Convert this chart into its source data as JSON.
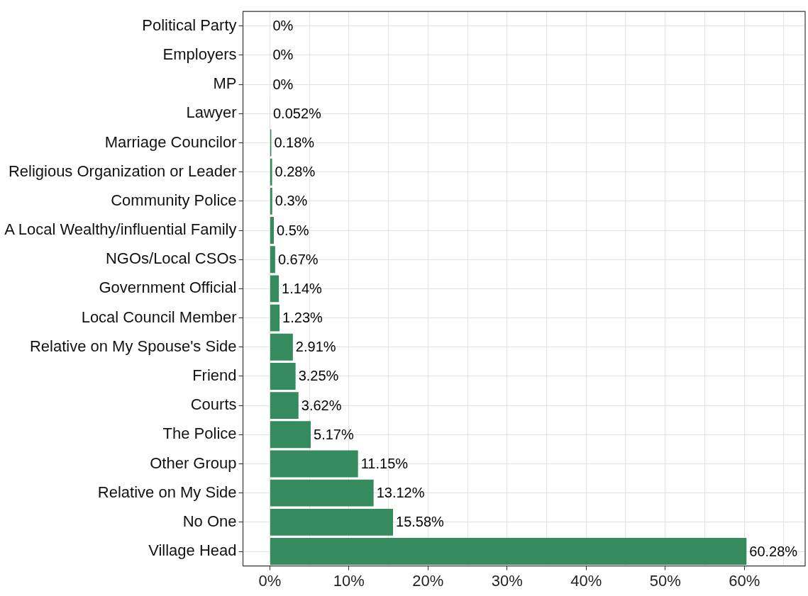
{
  "chart_data": {
    "type": "bar",
    "orientation": "horizontal",
    "color": "#358a5e",
    "grid": true,
    "categories": [
      "Political Party",
      "Employers",
      "MP",
      "Lawyer",
      "Marriage Councilor",
      "Religious Organization or Leader",
      "Community Police",
      "A Local Wealthy/influential Family",
      "NGOs/Local CSOs",
      "Government Official",
      "Local Council Member",
      "Relative on My Spouse's Side",
      "Friend",
      "Courts",
      "The Police",
      "Other Group",
      "Relative on My Side",
      "No One",
      "Village Head"
    ],
    "values": [
      0,
      0,
      0,
      0.052,
      0.18,
      0.28,
      0.3,
      0.5,
      0.67,
      1.14,
      1.23,
      2.91,
      3.25,
      3.62,
      5.17,
      11.15,
      13.12,
      15.58,
      60.28
    ],
    "value_labels": [
      "0%",
      "0%",
      "0%",
      "0.052%",
      "0.18%",
      "0.28%",
      "0.3%",
      "0.5%",
      "0.67%",
      "1.14%",
      "1.23%",
      "2.91%",
      "3.25%",
      "3.62%",
      "5.17%",
      "11.15%",
      "13.12%",
      "15.58%",
      "60.28%"
    ],
    "xlim": [
      -3.4,
      67.7
    ],
    "xticks": [
      {
        "value": 0,
        "label": "0%"
      },
      {
        "value": 5,
        "label": null
      },
      {
        "value": 10,
        "label": "10%"
      },
      {
        "value": 15,
        "label": null
      },
      {
        "value": 20,
        "label": "20%"
      },
      {
        "value": 25,
        "label": null
      },
      {
        "value": 30,
        "label": "30%"
      },
      {
        "value": 35,
        "label": null
      },
      {
        "value": 40,
        "label": "40%"
      },
      {
        "value": 45,
        "label": null
      },
      {
        "value": 50,
        "label": "50%"
      },
      {
        "value": 55,
        "label": null
      },
      {
        "value": 60,
        "label": "60%"
      },
      {
        "value": 65,
        "label": null
      }
    ]
  }
}
